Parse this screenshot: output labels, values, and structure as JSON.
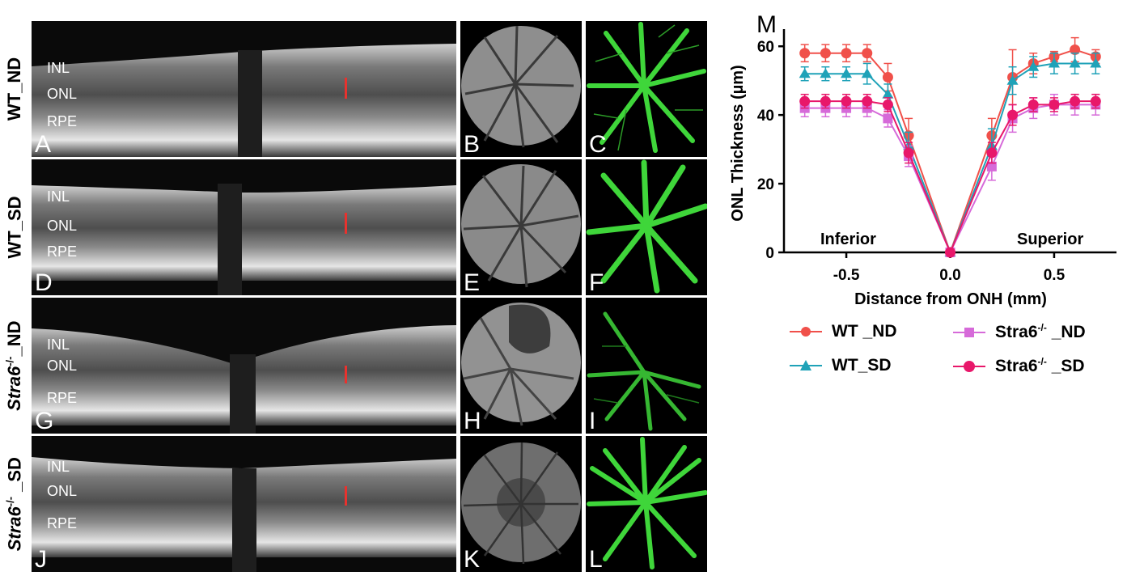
{
  "figure": {
    "rows": [
      {
        "label": "WT_ND",
        "oct_letter": "A",
        "fundus_letter": "B",
        "angio_letter": "C"
      },
      {
        "label": "WT_SD",
        "oct_letter": "D",
        "fundus_letter": "E",
        "angio_letter": "F"
      },
      {
        "label_italic": "Stra6",
        "label_sup": "-/-",
        "label_suffix": "_ND",
        "oct_letter": "G",
        "fundus_letter": "H",
        "angio_letter": "I"
      },
      {
        "label_italic": "Stra6",
        "label_sup": "-/-",
        "label_suffix": " _SD",
        "oct_letter": "J",
        "fundus_letter": "K",
        "angio_letter": "L"
      }
    ],
    "layers": {
      "inl": "INL",
      "onl": "ONL",
      "rpe": "RPE"
    },
    "chart_letter": "M"
  },
  "chart_data": {
    "type": "line",
    "xlabel": "Distance from ONH (mm)",
    "ylabel": "ONL Thickness (µm)",
    "xlim": [
      -0.8,
      0.8
    ],
    "ylim": [
      0,
      65
    ],
    "xticks": [
      "-0.5",
      "0.0",
      "0.5"
    ],
    "yticks": [
      "0",
      "20",
      "40",
      "60"
    ],
    "annotations": {
      "left": "Inferior",
      "right": "Superior"
    },
    "x": [
      -0.7,
      -0.6,
      -0.5,
      -0.4,
      -0.3,
      -0.2,
      0.0,
      0.2,
      0.3,
      0.4,
      0.5,
      0.6,
      0.7
    ],
    "series": [
      {
        "name": "WT _ND",
        "color": "#f0504a",
        "marker": "circle",
        "values": [
          58,
          58,
          58,
          58,
          51,
          34,
          0,
          34,
          51,
          55,
          57,
          59,
          57
        ],
        "errors": [
          2.5,
          2.5,
          2.5,
          2.5,
          4,
          5,
          0,
          5,
          8,
          3,
          1.5,
          3.5,
          2
        ]
      },
      {
        "name": "WT_SD",
        "color": "#1fa2b8",
        "marker": "triangle",
        "values": [
          52,
          52,
          52,
          52,
          46,
          31,
          0,
          31,
          50,
          54,
          55,
          55,
          55
        ],
        "errors": [
          2,
          2,
          2,
          3,
          3,
          4,
          0,
          5,
          4,
          3,
          3,
          3,
          3
        ]
      },
      {
        "name_main": "Stra6",
        "name_sup": "-/-",
        "name_suffix": " _ND",
        "color": "#d66ad9",
        "marker": "square",
        "values": [
          42,
          42,
          42,
          42,
          39,
          28,
          0,
          25,
          39,
          42,
          43,
          43,
          43
        ],
        "errors": [
          2.5,
          2.5,
          2.5,
          2.5,
          2.5,
          3,
          0,
          4,
          4,
          3,
          3,
          3,
          3
        ]
      },
      {
        "name_main": "Stra6",
        "name_sup": "-/-",
        "name_suffix": " _SD",
        "color": "#e8176a",
        "marker": "circle",
        "values": [
          44,
          44,
          44,
          44,
          43,
          29,
          0,
          29,
          40,
          43,
          43,
          44,
          44
        ],
        "errors": [
          2,
          2,
          2,
          2,
          2,
          3,
          0,
          3,
          3,
          2,
          2,
          2,
          2
        ]
      }
    ]
  }
}
